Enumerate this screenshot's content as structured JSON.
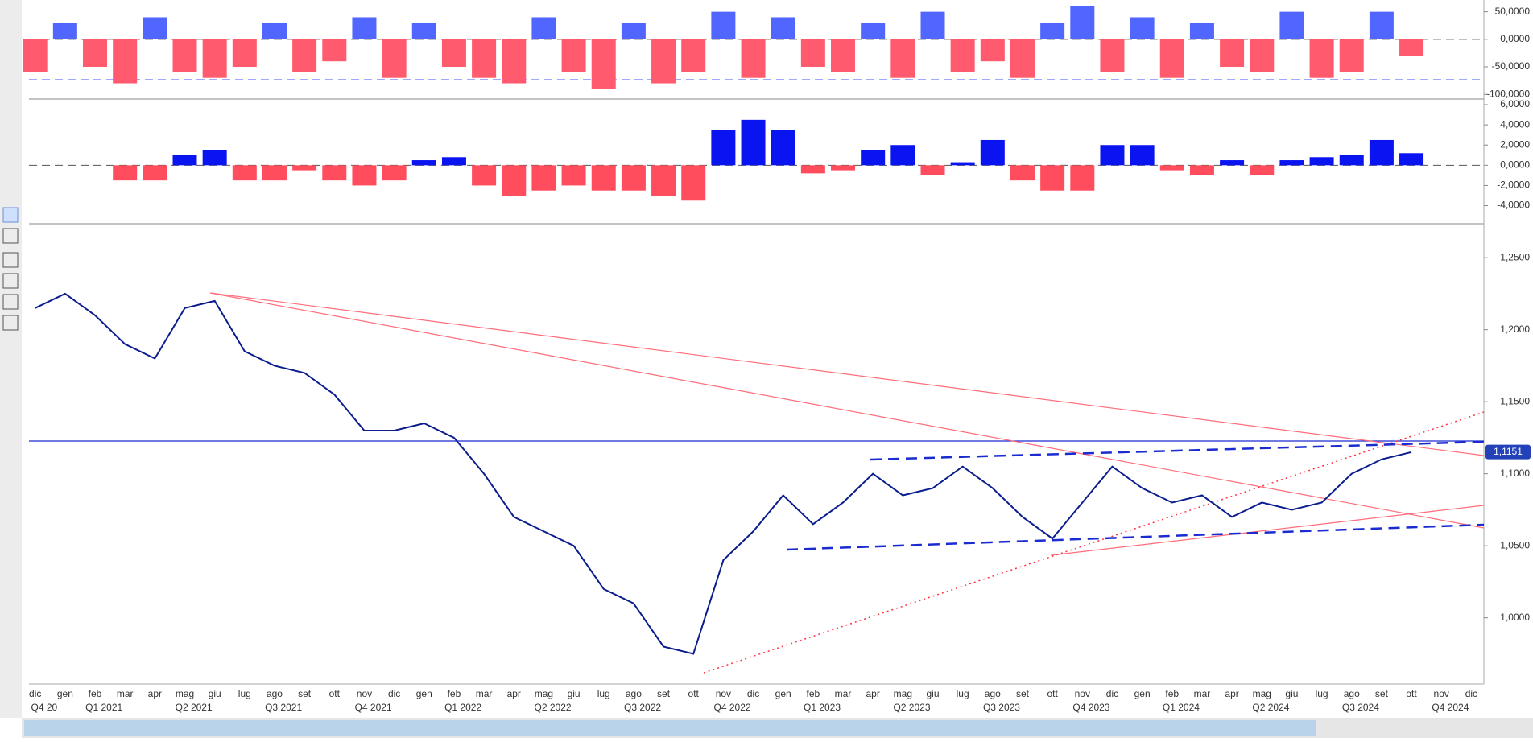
{
  "chart_data": {
    "type": "bar",
    "categories": [
      "dic",
      "gen",
      "feb",
      "mar",
      "apr",
      "mag",
      "giu",
      "lug",
      "ago",
      "set",
      "ott",
      "nov",
      "dic",
      "gen",
      "feb",
      "mar",
      "apr",
      "mag",
      "giu",
      "lug",
      "ago",
      "set",
      "ott",
      "nov",
      "dic",
      "gen",
      "feb",
      "mar",
      "apr",
      "mag",
      "giu",
      "lug",
      "ago",
      "set",
      "ott",
      "nov",
      "dic",
      "gen",
      "feb",
      "mar",
      "apr",
      "mag",
      "giu",
      "lug",
      "ago",
      "set",
      "ott",
      "nov",
      "dic"
    ],
    "quarters": [
      "Q4 20",
      "Q1 2021",
      "Q2 2021",
      "Q3 2021",
      "Q4 2021",
      "Q1 2022",
      "Q2 2022",
      "Q3 2022",
      "Q4 2022",
      "Q1 2023",
      "Q2 2023",
      "Q3 2023",
      "Q4 2023",
      "Q1 2024",
      "Q2 2024",
      "Q3 2024",
      "Q4 2024"
    ],
    "panels": [
      {
        "type": "bar",
        "pos_color": "#5066ff",
        "neg_color": "#ff5a6e",
        "ylim": [
          -107,
          71.4
        ],
        "yticks": [
          {
            "value": 50,
            "label": "50,0000"
          },
          {
            "value": 0,
            "label": "0,0000"
          },
          {
            "value": -50,
            "label": "-50,0000"
          },
          {
            "value": -100,
            "label": "-100,0000"
          }
        ],
        "values": [
          -60,
          30,
          -50,
          -80,
          40,
          -60,
          -70,
          -50,
          30,
          -60,
          -40,
          40,
          -70,
          30,
          -50,
          -70,
          -80,
          40,
          -60,
          -90,
          30,
          -80,
          -60,
          50,
          -70,
          40,
          -50,
          -60,
          30,
          -70,
          50,
          -60,
          -40,
          -70,
          30,
          60,
          -60,
          40,
          -70,
          30,
          -50,
          -60,
          50,
          -70,
          -60,
          50,
          -30,
          null,
          null
        ]
      },
      {
        "type": "bar",
        "pos_color": "#0a14f0",
        "neg_color": "#ff4d5e",
        "ylim": [
          -5.71,
          6.48
        ],
        "yticks": [
          {
            "value": 6,
            "label": "6,0000"
          },
          {
            "value": 4,
            "label": "4,0000"
          },
          {
            "value": 2,
            "label": "2,0000"
          },
          {
            "value": 0,
            "label": "0,0000"
          },
          {
            "value": -2,
            "label": "-2,0000"
          },
          {
            "value": -4,
            "label": "-4,0000"
          }
        ],
        "values": [
          0,
          0,
          0,
          -1.5,
          -1.5,
          1.0,
          1.5,
          -1.5,
          -1.5,
          -0.5,
          -1.5,
          -2,
          -1.5,
          0.5,
          0.8,
          -2,
          -3,
          -2.5,
          -2,
          -2.5,
          -2.5,
          -3,
          -3.5,
          3.5,
          4.5,
          3.5,
          -0.8,
          -0.5,
          1.5,
          2,
          -1,
          0.3,
          2.5,
          -1.5,
          -2.5,
          -2.5,
          2,
          2,
          -0.5,
          -1,
          0.5,
          -1,
          0.5,
          0.8,
          1,
          2.5,
          1.2,
          null,
          null
        ]
      },
      {
        "type": "line",
        "color": "#0b1d8c",
        "ylim": [
          0.954,
          1.273
        ],
        "yticks": [
          {
            "value": 1.25,
            "label": "1,2500"
          },
          {
            "value": 1.2,
            "label": "1,2000"
          },
          {
            "value": 1.15,
            "label": "1,1500"
          },
          {
            "value": 1.1,
            "label": "1,1000"
          },
          {
            "value": 1.05,
            "label": "1,0500"
          },
          {
            "value": 1.0,
            "label": "1,0000"
          }
        ],
        "values": [
          1.215,
          1.225,
          1.21,
          1.19,
          1.18,
          1.215,
          1.22,
          1.185,
          1.175,
          1.17,
          1.155,
          1.13,
          1.13,
          1.135,
          1.125,
          1.1,
          1.07,
          1.06,
          1.05,
          1.02,
          1.01,
          0.98,
          0.975,
          1.04,
          1.06,
          1.085,
          1.065,
          1.08,
          1.1,
          1.085,
          1.09,
          1.105,
          1.09,
          1.07,
          1.055,
          1.08,
          1.105,
          1.09,
          1.08,
          1.085,
          1.07,
          1.08,
          1.075,
          1.08,
          1.1,
          1.11,
          1.115,
          null,
          null
        ],
        "last_price": {
          "value": 1.1151,
          "label": "1,1151"
        }
      }
    ]
  }
}
